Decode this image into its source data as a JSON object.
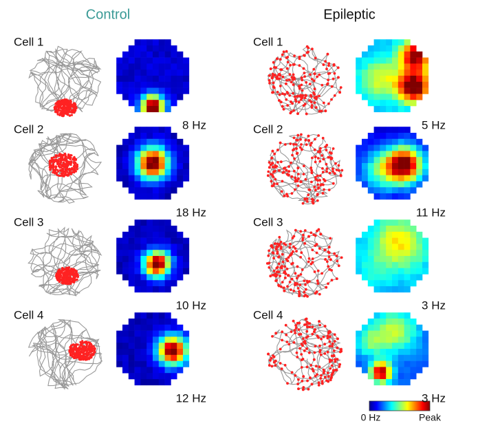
{
  "columns": [
    {
      "title": "Control",
      "cells": [
        {
          "label": "Cell 1",
          "rate": "8 Hz"
        },
        {
          "label": "Cell 2",
          "rate": "18 Hz"
        },
        {
          "label": "Cell 3",
          "rate": "10 Hz"
        },
        {
          "label": "Cell 4",
          "rate": "12 Hz"
        }
      ]
    },
    {
      "title": "Epileptic",
      "cells": [
        {
          "label": "Cell 1",
          "rate": "5 Hz"
        },
        {
          "label": "Cell 2",
          "rate": "11 Hz"
        },
        {
          "label": "Cell 3",
          "rate": "3 Hz"
        },
        {
          "label": "Cell 4",
          "rate": "3 Hz"
        }
      ]
    }
  ],
  "colorbar": {
    "min_label": "0 Hz",
    "max_label": "Peak"
  }
}
